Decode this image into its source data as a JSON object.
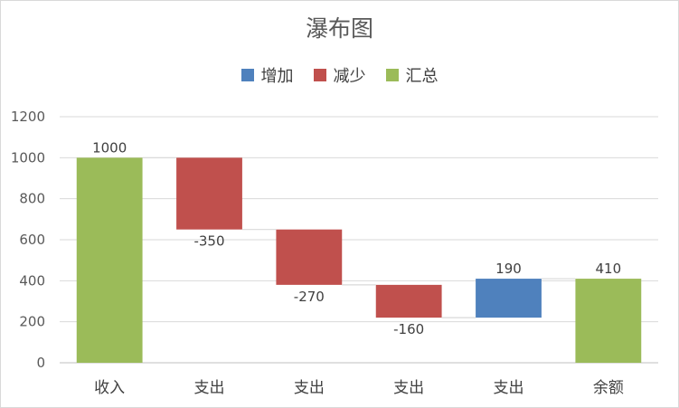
{
  "chart_data": {
    "type": "bar",
    "subtype": "waterfall",
    "title": "瀑布图",
    "legend": [
      {
        "name": "增加",
        "color": "#4f81bd"
      },
      {
        "name": "减少",
        "color": "#c0504d"
      },
      {
        "name": "汇总",
        "color": "#9bbb59"
      }
    ],
    "legend_position": "top",
    "categories": [
      "收入",
      "支出",
      "支出",
      "支出",
      "支出",
      "余额"
    ],
    "values": [
      1000,
      -350,
      -270,
      -160,
      190,
      410
    ],
    "kinds": [
      "total",
      "decrease",
      "decrease",
      "decrease",
      "increase",
      "total"
    ],
    "data_labels": [
      "1000",
      "-350",
      "-270",
      "-160",
      "190",
      "410"
    ],
    "yticks": [
      "0",
      "200",
      "400",
      "600",
      "800",
      "1000",
      "1200"
    ],
    "ylim": [
      0,
      1200
    ],
    "grid": true,
    "xlabel": "",
    "ylabel": ""
  }
}
